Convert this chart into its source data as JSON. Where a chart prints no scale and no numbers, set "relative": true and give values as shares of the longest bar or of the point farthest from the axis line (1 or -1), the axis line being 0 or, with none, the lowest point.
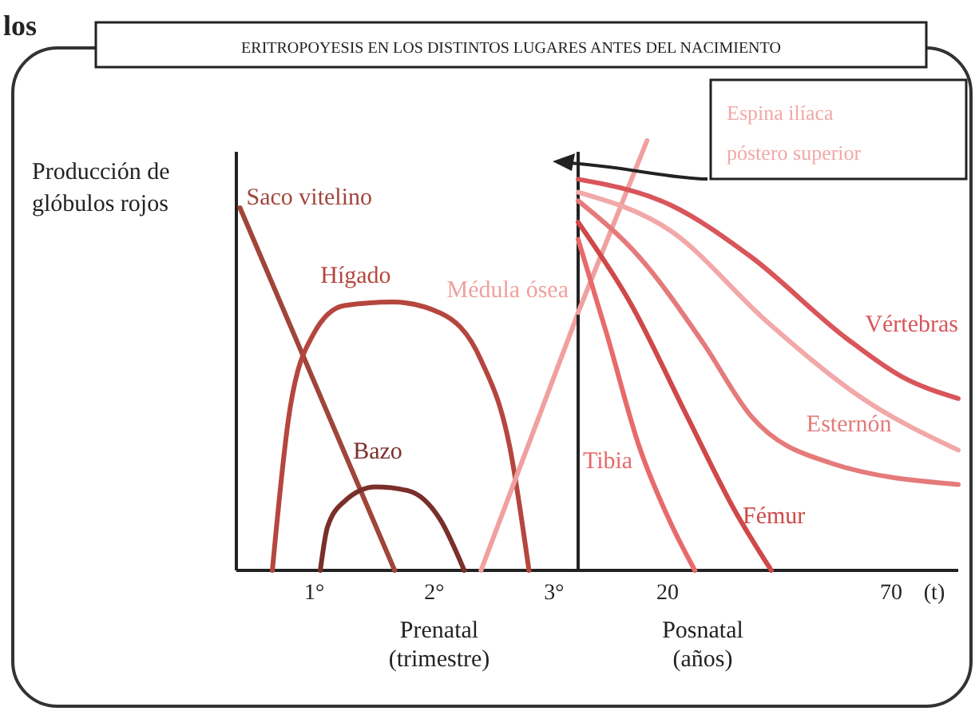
{
  "chart_data": [
    {
      "type": "line",
      "relative": true,
      "title": "ERITROPOYESIS EN LOS DISTINTOS LUGARES ANTES DEL NACIMIENTO",
      "ylabel": "Producción de glóbulos rojos",
      "xlabel": "Prenatal (trimestre)",
      "xlim": [
        0.35,
        3.2
      ],
      "xticks": [
        {
          "value": 1,
          "label": "1°"
        },
        {
          "value": 2,
          "label": "2°"
        },
        {
          "value": 3,
          "label": "3°"
        }
      ],
      "marker": "none",
      "annotations": [
        "los"
      ],
      "series": [
        {
          "name": "Saco vitelino",
          "color": "#a0453a",
          "x": [
            0.38,
            1.67
          ],
          "values": [
            1,
            0
          ]
        },
        {
          "name": "Hígado",
          "color": "#b5463e",
          "x": [
            0.65,
            0.79,
            0.99,
            1.25,
            1.65,
            2.05,
            2.39,
            2.63,
            2.79
          ],
          "values": [
            0,
            0.43,
            0.65,
            0.73,
            0.74,
            0.71,
            0.58,
            0.34,
            0
          ]
        },
        {
          "name": "Bazo",
          "color": "#7a2f2a",
          "x": [
            1.05,
            1.11,
            1.25,
            1.51,
            1.78,
            2.05,
            2.25
          ],
          "values": [
            0,
            0.12,
            0.19,
            0.23,
            0.22,
            0.14,
            0
          ]
        },
        {
          "name": "Médula ósea",
          "color": "#f0a0a0",
          "x": [
            2.39,
            3.2
          ],
          "values": [
            0,
            0.71
          ]
        }
      ]
    },
    {
      "type": "line",
      "relative": true,
      "xlabel": "Posnatal (años)",
      "xlim": [
        0,
        85
      ],
      "xticks": [
        20,
        70
      ],
      "marker": "none",
      "annotations": [
        "(t)"
      ],
      "series": [
        {
          "color": "#f0a0a0",
          "x": [
            0,
            15.4
          ],
          "values": [
            0.6,
            1
          ]
        },
        {
          "name": "Vértebras",
          "color": "#d9555a",
          "x": [
            0,
            20.7,
            38.6,
            60,
            72.5,
            85
          ],
          "values": [
            0.91,
            0.85,
            0.73,
            0.54,
            0.45,
            0.4
          ]
        },
        {
          "name": "Espina ilíaca póstero superior",
          "color": "#f2a8a8",
          "x": [
            0,
            20.7,
            42.1,
            63.6,
            85
          ],
          "values": [
            0.88,
            0.79,
            0.58,
            0.4,
            0.28
          ]
        },
        {
          "name": "Esternón",
          "color": "#e57a7a",
          "x": [
            0,
            13.6,
            27.9,
            38.6,
            56.4,
            85
          ],
          "values": [
            0.86,
            0.73,
            0.53,
            0.36,
            0.25,
            0.2
          ]
        },
        {
          "name": "Fémur",
          "color": "#d04848",
          "x": [
            0,
            11.8,
            24.3,
            35,
            43.2
          ],
          "values": [
            0.81,
            0.62,
            0.36,
            0.14,
            0
          ]
        },
        {
          "name": "Tibia",
          "color": "#e86a6a",
          "x": [
            0,
            6.4,
            13.6,
            20.7,
            26.1
          ],
          "values": [
            0.77,
            0.55,
            0.29,
            0.11,
            0
          ]
        }
      ]
    }
  ]
}
